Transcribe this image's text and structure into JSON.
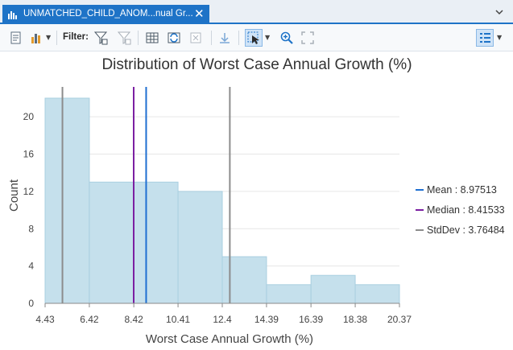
{
  "tab": {
    "title": "UNMATCHED_CHILD_ANOM...nual Gr...",
    "close": "✕"
  },
  "toolbar": {
    "filter_label": "Filter:"
  },
  "colors": {
    "accent": "#1e73c7",
    "bar_fill": "#c5e0ec",
    "bar_stroke": "#a9cfe0",
    "mean": "#1f6fd1",
    "median": "#7b1fa2",
    "stddev": "#8c8c8c"
  },
  "chart_data": {
    "type": "bar",
    "title": "Distribution of Worst Case Annual Growth (%)",
    "xlabel": "Worst Case Annual Growth (%)",
    "ylabel": "Count",
    "xlim": [
      4.43,
      20.37
    ],
    "ylim": [
      0,
      22
    ],
    "bin_edges": [
      4.43,
      6.42,
      8.42,
      10.41,
      12.4,
      14.39,
      16.39,
      18.38,
      20.37
    ],
    "counts": [
      22,
      13,
      13,
      12,
      5,
      2,
      3,
      2
    ],
    "x_ticks": [
      "4.43",
      "6.42",
      "8.42",
      "10.41",
      "12.4",
      "14.39",
      "16.39",
      "18.38",
      "20.37"
    ],
    "y_ticks": [
      0,
      4,
      8,
      12,
      16,
      20
    ],
    "lines": [
      {
        "name": "Mean",
        "value": 8.97513,
        "label": "Mean : 8.97513",
        "color": "#1f6fd1"
      },
      {
        "name": "Median",
        "value": 8.41533,
        "label": "Median : 8.41533",
        "color": "#7b1fa2"
      },
      {
        "name": "StdDev",
        "values": [
          5.21029,
          12.73997
        ],
        "label": "StdDev : 3.76484",
        "color": "#8c8c8c"
      }
    ],
    "grid": true,
    "legend": "right"
  }
}
